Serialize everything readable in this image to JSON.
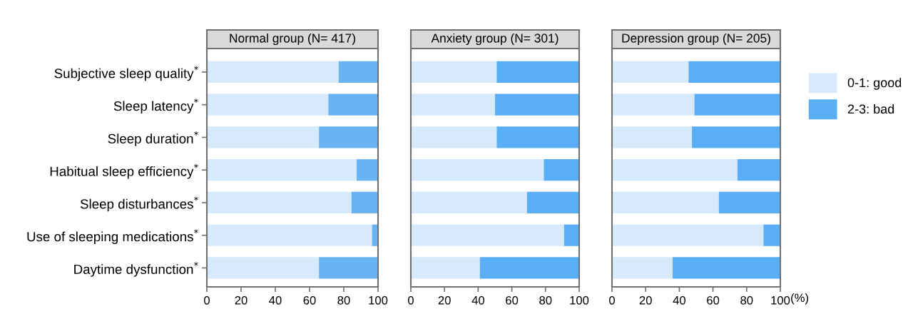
{
  "chart_data": [
    {
      "type": "bar",
      "orientation": "horizontal",
      "stacked": true,
      "title": "Normal group (N= 417)",
      "categories": [
        "Subjective sleep quality$^{*}$",
        "Sleep latency$^{*}$",
        "Sleep duration$^{*}$",
        "Habitual sleep efficiency$^{*}$",
        "Sleep disturbances$^{*}$",
        "Use of sleeping medications$^{*}$",
        "Daytime dysfunction$^{*}$"
      ],
      "xlim": [
        0,
        100
      ],
      "xticks": [
        0,
        20,
        40,
        60,
        80,
        100
      ],
      "grid": false,
      "legend": false,
      "series": [
        {
          "color": "#d6eafb",
          "values": [
            77,
            71,
            65.5,
            87.5,
            84.5,
            96.5,
            65.5
          ]
        },
        {
          "color": "#68b4f2",
          "values": [
            23,
            29,
            34.5,
            12.5,
            15.5,
            3.5,
            34.5
          ]
        }
      ]
    },
    {
      "type": "bar",
      "orientation": "horizontal",
      "stacked": true,
      "title": "Anxiety group (N= 301)",
      "categories": [
        null,
        null,
        null,
        null,
        null,
        null,
        null
      ],
      "xlim": [
        0,
        100
      ],
      "xticks": [
        0,
        20,
        40,
        60,
        80,
        100
      ],
      "tick_labels": "x",
      "grid": false,
      "legend": false,
      "series": [
        {
          "color": "#d6eafb",
          "values": [
            51,
            50,
            51,
            79,
            69,
            91,
            41
          ]
        },
        {
          "color": "#5aaef5",
          "values": [
            49,
            50,
            49,
            21,
            31,
            9,
            59
          ]
        }
      ]
    },
    {
      "type": "bar",
      "orientation": "horizontal",
      "stacked": true,
      "title": "Depression group (N= 205)",
      "xlabel": "(%)",
      "categories": [
        null,
        null,
        null,
        null,
        null,
        null,
        null
      ],
      "xlim": [
        0,
        100
      ],
      "xticks": [
        0,
        20,
        40,
        60,
        80,
        100
      ],
      "tick_labels": "x",
      "grid": false,
      "legend": "right",
      "series": [
        {
          "name": "0-1: good",
          "color": "#d6eafb",
          "values": [
            45.5,
            49,
            47.5,
            74.5,
            63.5,
            90,
            36
          ]
        },
        {
          "name": "2-3: bad",
          "color": "#5aaef5",
          "values": [
            54.5,
            51,
            52.5,
            25.5,
            36.5,
            10,
            64
          ]
        }
      ]
    }
  ]
}
